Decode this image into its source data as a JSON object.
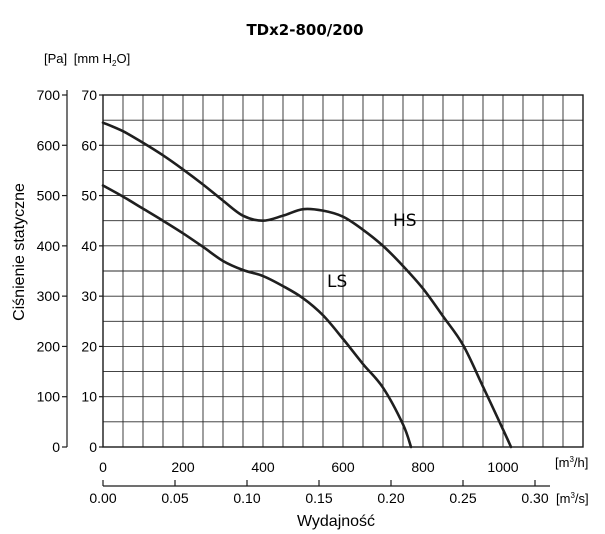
{
  "chart_data": {
    "type": "line",
    "title": "TDx2-800/200",
    "ylabel": "Ciśnienie statyczne",
    "xlabel": "Wydajność",
    "y_units": {
      "pa": "[Pa]",
      "mm_pre": "[mm H",
      "mm_sub": "2",
      "mm_post": "O]"
    },
    "x_units": {
      "m3h_pre": "[m",
      "m3h_sup": "3",
      "m3h_post": "/h]",
      "m3s_pre": "[m",
      "m3s_sup": "3",
      "m3s_post": "/s]"
    },
    "y_pa_ticks": [
      "0",
      "100",
      "200",
      "300",
      "400",
      "500",
      "600",
      "700"
    ],
    "y_mm_ticks": [
      "0",
      "10",
      "20",
      "30",
      "40",
      "50",
      "60",
      "70"
    ],
    "x_m3h_ticks": [
      "0",
      "200",
      "400",
      "600",
      "800",
      "1000"
    ],
    "x_m3s_ticks": [
      "0.00",
      "0.05",
      "0.10",
      "0.15",
      "0.20",
      "0.25",
      "0.30"
    ],
    "xlim_m3h": [
      0,
      1200
    ],
    "ylim_pa": [
      0,
      700
    ],
    "grid": true,
    "series": [
      {
        "name": "HS",
        "x": [
          0,
          50,
          100,
          150,
          200,
          250,
          300,
          350,
          400,
          450,
          500,
          550,
          600,
          650,
          700,
          750,
          800,
          850,
          900,
          950,
          1000,
          1020
        ],
        "y": [
          645,
          628,
          605,
          580,
          552,
          522,
          490,
          460,
          450,
          460,
          473,
          470,
          458,
          432,
          400,
          360,
          315,
          260,
          203,
          120,
          35,
          0
        ]
      },
      {
        "name": "LS",
        "x": [
          0,
          50,
          100,
          150,
          200,
          250,
          300,
          350,
          400,
          450,
          500,
          550,
          600,
          650,
          700,
          750,
          770
        ],
        "y": [
          520,
          498,
          474,
          450,
          425,
          398,
          370,
          352,
          340,
          320,
          296,
          262,
          215,
          165,
          118,
          45,
          0
        ]
      }
    ]
  }
}
